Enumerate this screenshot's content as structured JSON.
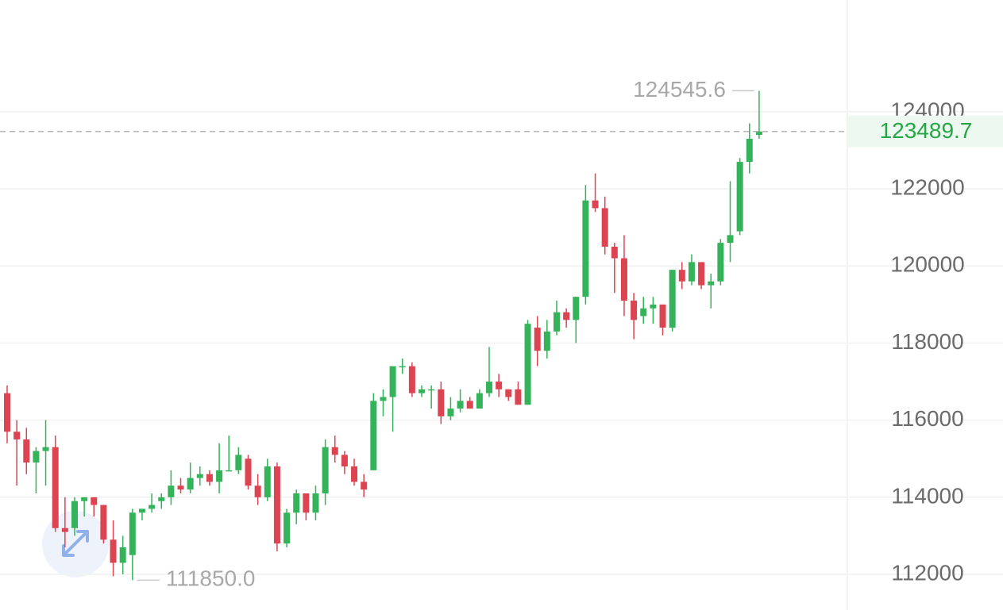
{
  "chart_data": {
    "type": "candlestick",
    "open": [
      116700,
      115700,
      115500,
      114900,
      115200,
      115300,
      113200,
      113200,
      113900,
      114000,
      113800,
      112900,
      112300,
      112500,
      113600,
      113700,
      113900,
      114000,
      114300,
      114200,
      114500,
      114600,
      114400,
      114700,
      114700,
      115000,
      114300,
      114000,
      114800,
      112800,
      113600,
      114100,
      113600,
      114100,
      115300,
      115100,
      114800,
      114400,
      114700,
      116500,
      116600,
      117400,
      117400,
      116700,
      116800,
      116800,
      116100,
      116300,
      116500,
      116300,
      116700,
      117000,
      116800,
      116800,
      116400,
      118400,
      117800,
      118300,
      118800,
      118600,
      119200,
      121700,
      121500,
      120500,
      120200,
      119100,
      118700,
      118900,
      119000,
      118400,
      119900,
      119600,
      120100,
      119500,
      119600,
      120600,
      120900,
      122700,
      123400
    ],
    "high": [
      116900,
      116000,
      115800,
      115300,
      116000,
      115600,
      114000,
      114000,
      114000,
      114000,
      113800,
      113400,
      113000,
      113700,
      113700,
      114100,
      114100,
      114700,
      114500,
      114900,
      114800,
      114700,
      115400,
      115600,
      115300,
      115100,
      114600,
      115000,
      114900,
      113700,
      114200,
      114100,
      114300,
      115500,
      115600,
      115200,
      115000,
      114600,
      116700,
      116800,
      117400,
      117600,
      117500,
      116900,
      116900,
      117000,
      116600,
      116800,
      116600,
      116800,
      117900,
      117200,
      116800,
      117000,
      118600,
      118700,
      118600,
      119100,
      118900,
      119200,
      122100,
      122400,
      121800,
      120600,
      120800,
      119300,
      119200,
      119200,
      119000,
      119900,
      120100,
      120300,
      120100,
      119800,
      120700,
      122200,
      122800,
      123700,
      124545.6
    ],
    "low": [
      115400,
      114300,
      114600,
      114100,
      114300,
      113100,
      112700,
      113000,
      113500,
      113500,
      112800,
      111950,
      112000,
      111850,
      113400,
      113600,
      113700,
      113800,
      114100,
      114100,
      114300,
      114300,
      114100,
      114700,
      114600,
      114200,
      113800,
      113900,
      112600,
      112700,
      113300,
      113400,
      113400,
      113800,
      114900,
      114600,
      114300,
      114000,
      114700,
      116100,
      115700,
      117200,
      116600,
      116600,
      116300,
      115900,
      116000,
      116200,
      116300,
      116300,
      116600,
      116600,
      116500,
      116400,
      116400,
      117400,
      117600,
      118200,
      118400,
      118000,
      119000,
      121400,
      120300,
      119300,
      118700,
      118100,
      118500,
      118500,
      118200,
      118300,
      119400,
      119500,
      119400,
      118900,
      119500,
      120100,
      120800,
      122400,
      123300
    ],
    "close": [
      115700,
      115500,
      114900,
      115200,
      115300,
      113200,
      113100,
      113900,
      114000,
      113800,
      112900,
      112300,
      112700,
      113600,
      113700,
      113800,
      114000,
      114300,
      114200,
      114500,
      114600,
      114400,
      114700,
      114700,
      115100,
      114300,
      114000,
      114800,
      112800,
      113600,
      114100,
      113600,
      114100,
      115300,
      115100,
      114800,
      114400,
      114200,
      116500,
      116600,
      117400,
      117400,
      116700,
      116800,
      116800,
      116100,
      116300,
      116500,
      116300,
      116700,
      117000,
      116800,
      116600,
      116400,
      118500,
      117800,
      118300,
      118800,
      118600,
      119200,
      121700,
      121500,
      120500,
      120200,
      119100,
      118600,
      118900,
      119000,
      118400,
      119900,
      119600,
      120100,
      119500,
      119600,
      120600,
      120800,
      122700,
      123300,
      123489.7
    ],
    "up_color": "#34b35a",
    "down_color": "#dc4452",
    "ylim": [
      111075,
      126900
    ],
    "yticks": [
      112000,
      114000,
      116000,
      118000,
      120000,
      122000,
      124000
    ],
    "grid": true,
    "max_price": 124545.6,
    "min_price": {
      "value": 111850,
      "label": "111850.0"
    },
    "last_price": 123489.7
  }
}
